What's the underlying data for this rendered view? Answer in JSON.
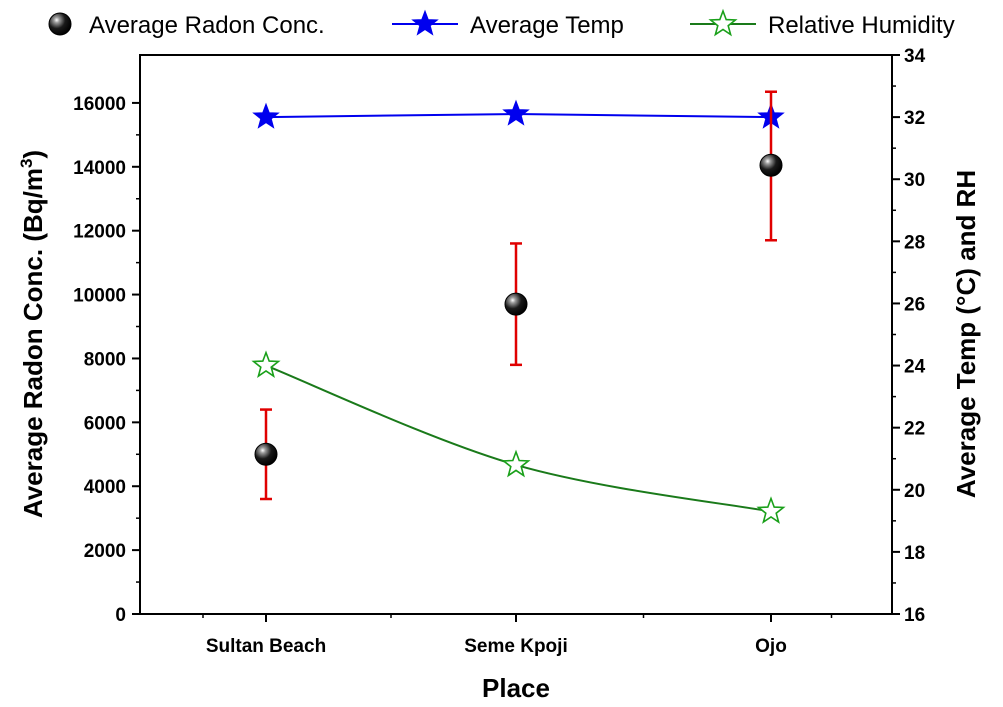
{
  "chart_data": {
    "type": "scatter",
    "xlabel": "Place",
    "categories": [
      "Sultan Beach",
      "Seme Kpoji",
      "Ojo"
    ],
    "y_left": {
      "label": "Average Radon Conc. (Bq/m",
      "label_sup": "3",
      "label_end": ")",
      "ylim": [
        0,
        17500
      ],
      "ticks": [
        0,
        2000,
        4000,
        6000,
        8000,
        10000,
        12000,
        14000,
        16000
      ]
    },
    "y_right": {
      "label": "Average Temp (°C) and RH",
      "ylim": [
        16,
        34
      ],
      "ticks": [
        16,
        18,
        20,
        22,
        24,
        26,
        28,
        30,
        32,
        34
      ]
    },
    "series": [
      {
        "name": "Average Radon Conc.",
        "axis": "left",
        "marker": "sphere",
        "values": [
          5000,
          9700,
          14050
        ],
        "error_low": [
          3600,
          7800,
          11700
        ],
        "error_high": [
          6400,
          11600,
          16350
        ]
      },
      {
        "name": "Average Temp",
        "axis": "right",
        "marker": "filled-star",
        "line": "straight",
        "color": "#0000ee",
        "values": [
          32.0,
          32.1,
          32.0
        ]
      },
      {
        "name": "Relative Humidity",
        "axis": "right",
        "marker": "hollow-star",
        "line": "smooth",
        "color": "#1aa01a",
        "line_color": "#1a7a1a",
        "values": [
          24.0,
          20.8,
          19.3
        ]
      }
    ],
    "error_bar_color": "#e00000",
    "grid": false,
    "legend_position": "top"
  }
}
